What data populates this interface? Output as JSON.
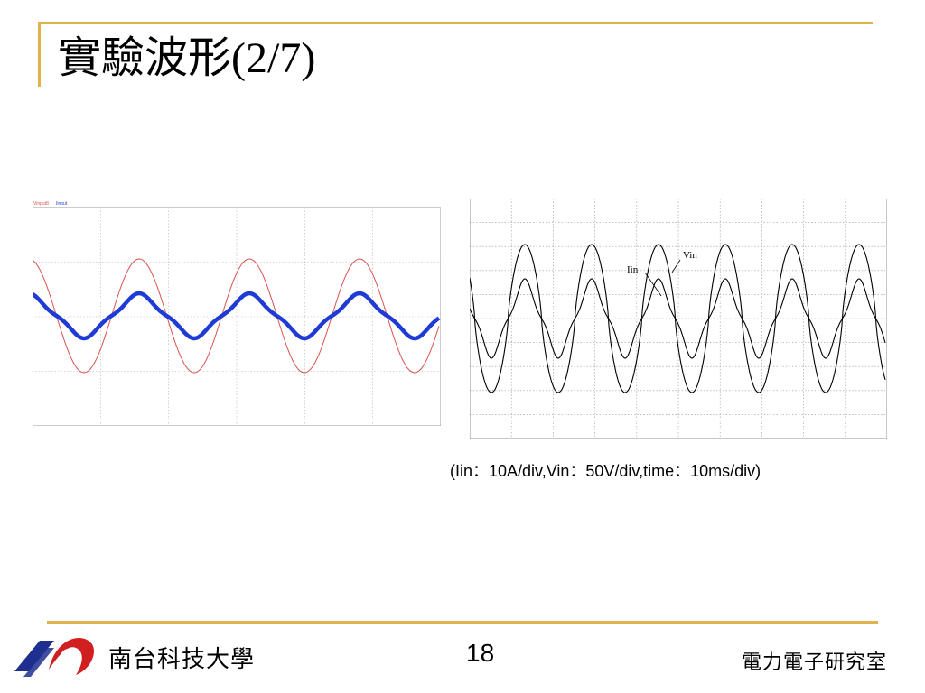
{
  "slide": {
    "title_cjk": "實驗波形",
    "title_num": "(2/7)",
    "caption": "(Iin：10A/div,Vin：50V/div,time：10ms/div)",
    "footer_left": "南台科技大學",
    "page_number": "18",
    "footer_right": "電力電子研究室"
  },
  "left_scope": {
    "legend": [
      "Vinput8",
      "Iinput"
    ],
    "colors": {
      "voltage": "#d9534f",
      "current": "#1f3bd6",
      "grid": "#9a9a9a"
    }
  },
  "right_scope": {
    "labels": {
      "current": "Iin",
      "voltage": "Vin"
    },
    "colors": {
      "trace": "#000000",
      "grid": "#8c8c8c"
    }
  },
  "theme": {
    "accent": "#e0b24a",
    "logo_blue": "#1f2f8f",
    "logo_red": "#d11f1f"
  }
}
